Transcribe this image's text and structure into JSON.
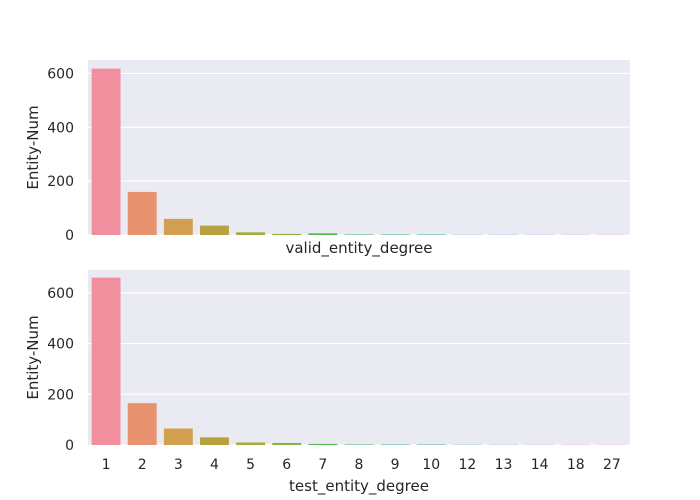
{
  "chart_data": [
    {
      "type": "bar",
      "categories": [
        "1",
        "2",
        "3",
        "4",
        "5",
        "6",
        "7",
        "8",
        "9",
        "10",
        "12",
        "13",
        "14",
        "18",
        "27"
      ],
      "values": [
        618,
        160,
        60,
        35,
        10,
        4,
        6,
        2,
        2,
        2,
        1,
        1,
        1,
        1,
        1
      ],
      "xlabel": "valid_entity_degree",
      "ylabel": "Entity-Num",
      "ylim": [
        0,
        650
      ],
      "yticks": [
        0,
        200,
        400,
        600
      ],
      "show_xtick_labels": false,
      "grid": true
    },
    {
      "type": "bar",
      "categories": [
        "1",
        "2",
        "3",
        "4",
        "5",
        "6",
        "7",
        "8",
        "9",
        "10",
        "12",
        "13",
        "14",
        "18",
        "27"
      ],
      "values": [
        660,
        165,
        65,
        30,
        10,
        8,
        4,
        2,
        2,
        2,
        1,
        1,
        1,
        1,
        1
      ],
      "xlabel": "test_entity_degree",
      "ylabel": "Entity-Num",
      "ylim": [
        0,
        690
      ],
      "yticks": [
        0,
        200,
        400,
        600
      ],
      "show_xtick_labels": true,
      "grid": true
    }
  ],
  "colors": {
    "background": "#eaeaf2",
    "grid": "#ffffff",
    "bars": [
      "#f08f9d",
      "#e99270",
      "#d1a04f",
      "#b8a23f",
      "#a6aa3f",
      "#86b33f",
      "#4eb448",
      "#4db57e",
      "#4fb29d",
      "#52b0ae",
      "#55aec2",
      "#6aa8da",
      "#a59be8",
      "#d28ce6",
      "#f08bd3"
    ]
  }
}
